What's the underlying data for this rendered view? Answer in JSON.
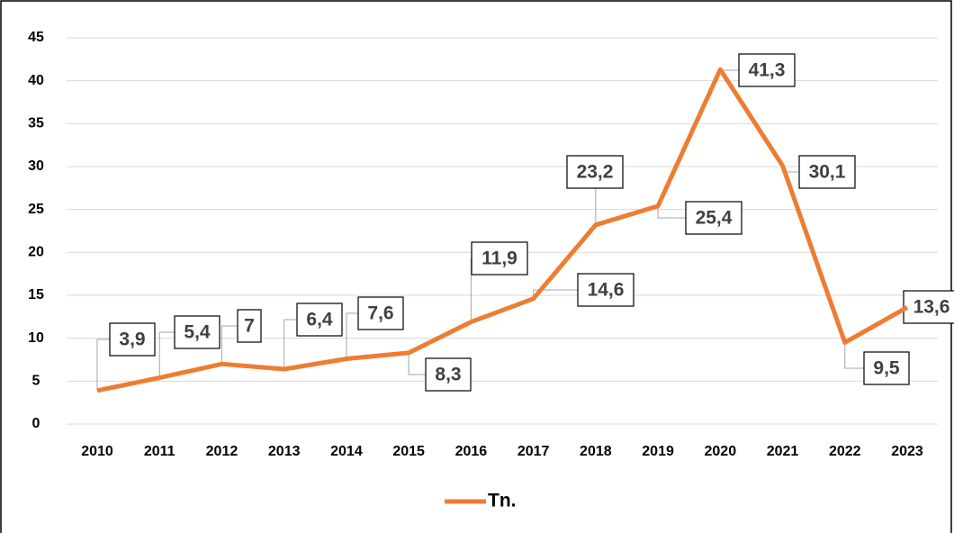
{
  "chart_data": {
    "type": "line",
    "categories": [
      "2010",
      "2011",
      "2012",
      "2013",
      "2014",
      "2015",
      "2016",
      "2017",
      "2018",
      "2019",
      "2020",
      "2021",
      "2022",
      "2023"
    ],
    "series": [
      {
        "name": "Tn.",
        "color": "#ed7d31",
        "values": [
          3.9,
          5.4,
          7,
          6.4,
          7.6,
          8.3,
          11.9,
          14.6,
          23.2,
          25.4,
          41.3,
          30.1,
          9.5,
          13.6
        ],
        "value_labels": [
          "3,9",
          "5,4",
          "7",
          "6,4",
          "7,6",
          "8,3",
          "11,9",
          "14,6",
          "23,2",
          "25,4",
          "41,3",
          "30,1",
          "9,5",
          "13,6"
        ]
      }
    ],
    "ylim": [
      0,
      45
    ],
    "yticks": [
      0,
      5,
      10,
      15,
      20,
      25,
      30,
      35,
      40,
      45
    ],
    "grid": true,
    "legend": "bottom"
  }
}
